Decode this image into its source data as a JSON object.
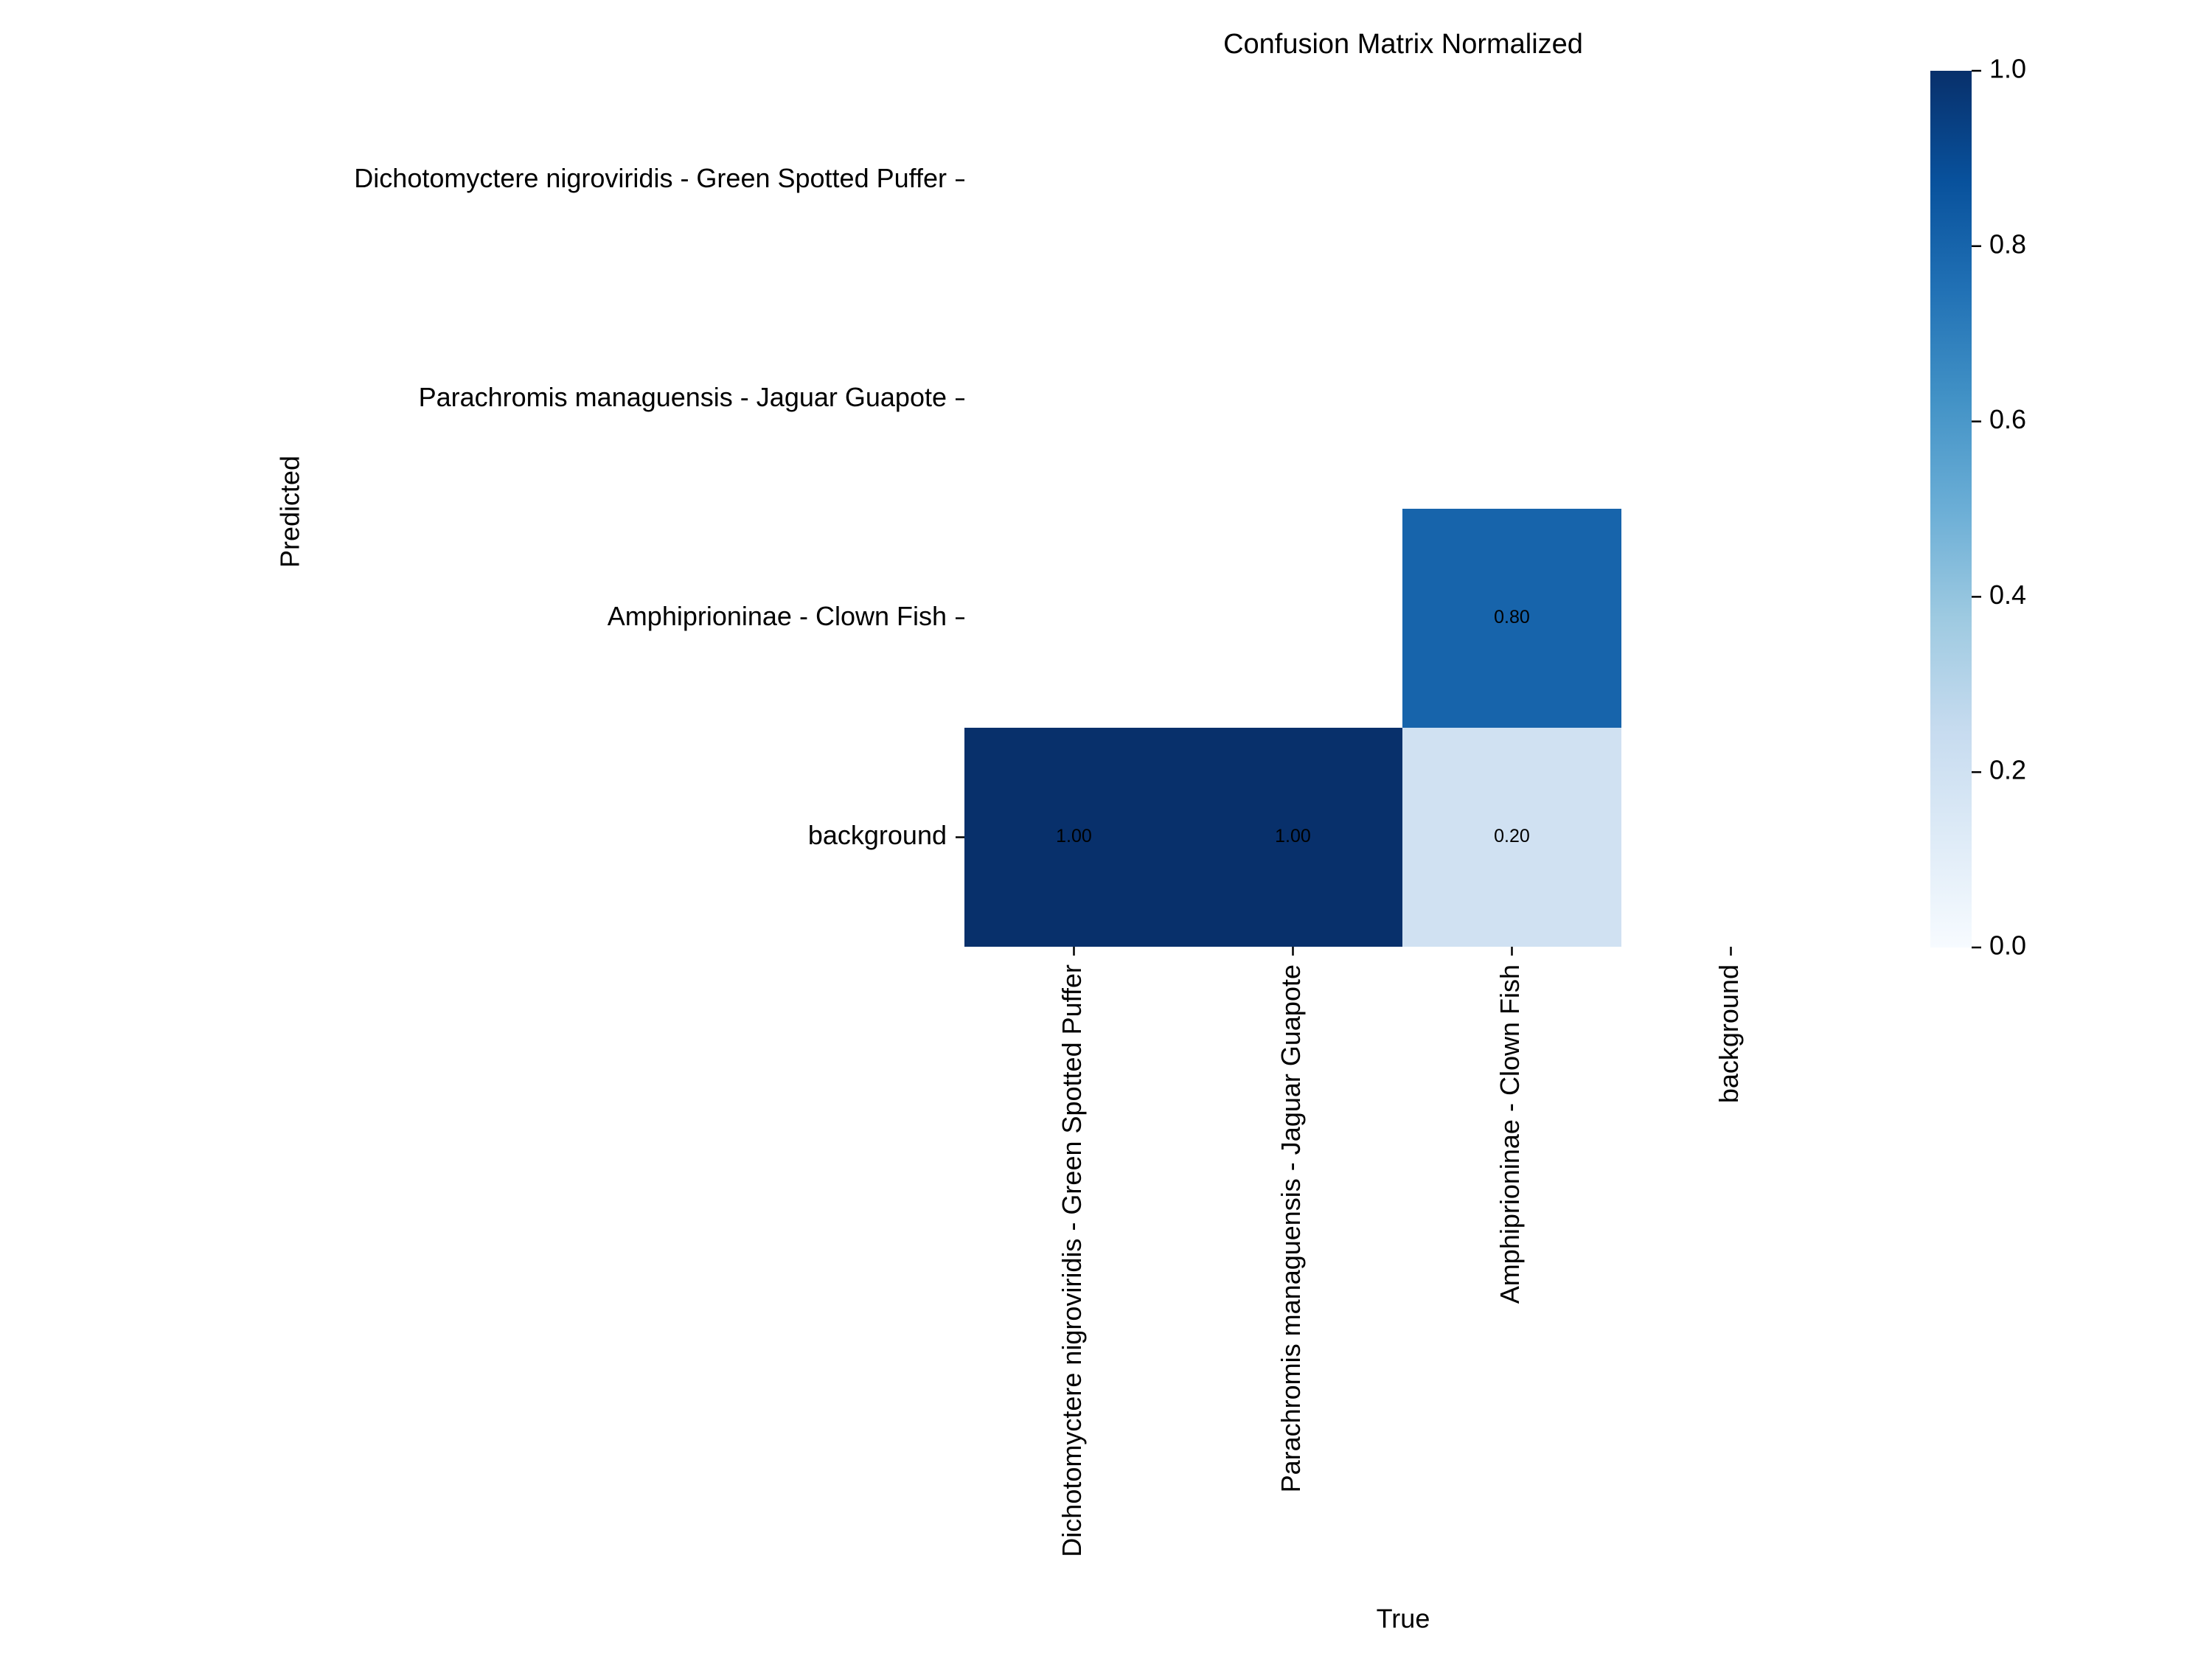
{
  "chart_data": {
    "type": "heatmap",
    "title": "Confusion Matrix Normalized",
    "xlabel": "True",
    "ylabel": "Predicted",
    "x_categories": [
      "Dichotomyctere nigroviridis - Green Spotted Puffer",
      "Parachromis managuensis - Jaguar Guapote",
      "Amphiprioninae - Clown Fish",
      "background"
    ],
    "y_categories": [
      "Dichotomyctere nigroviridis - Green Spotted Puffer",
      "Parachromis managuensis - Jaguar Guapote",
      "Amphiprioninae - Clown Fish",
      "background"
    ],
    "matrix": [
      [
        null,
        null,
        null,
        null
      ],
      [
        null,
        null,
        null,
        null
      ],
      [
        null,
        null,
        0.8,
        null
      ],
      [
        1.0,
        1.0,
        0.2,
        null
      ]
    ],
    "colorscale": "Blues",
    "colorbar": {
      "range": [
        0.0,
        1.0
      ],
      "ticks": [
        "0.0",
        "0.2",
        "0.4",
        "0.6",
        "0.8",
        "1.0"
      ]
    },
    "value_format": "2 decimals"
  }
}
